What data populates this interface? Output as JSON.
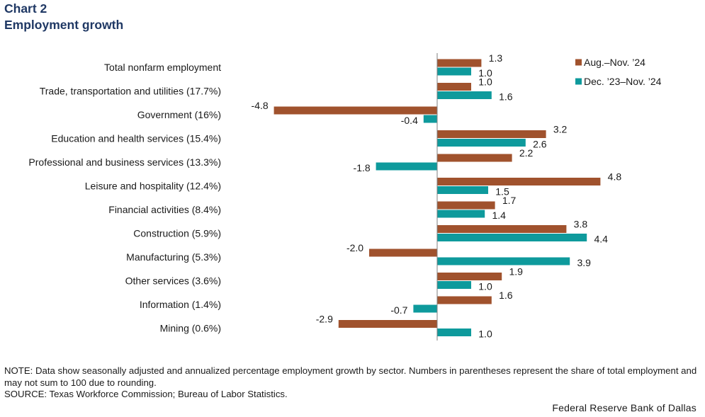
{
  "chart_number": "Chart 2",
  "title": "Employment growth",
  "note": "NOTE: Data show seasonally adjusted and annualized percentage employment growth by sector. Numbers in parentheses represent the share of total employment and may not sum to 100 due to rounding.",
  "source": "SOURCE: Texas Workforce Commission; Bureau of Labor Statistics.",
  "credit": "Federal Reserve Bank of Dallas",
  "colors": {
    "series1": "#a0522d",
    "series2": "#0e9a9c"
  },
  "chart_data": {
    "type": "bar",
    "orientation": "horizontal",
    "title": "Employment growth",
    "xlim": [
      -6.5,
      9.5
    ],
    "grid": false,
    "legend_position": "top-right",
    "categories": [
      "Total nonfarm employment",
      "Trade, transportation and utilities (17.7%)",
      "Government (16%)",
      "Education and health services (15.4%)",
      "Professional and business services (13.3%)",
      "Leisure and hospitality (12.4%)",
      "Financial activities (8.4%)",
      "Construction (5.9%)",
      "Manufacturing (5.3%)",
      "Other services (3.6%)",
      "Information (1.4%)",
      "Mining (0.6%)"
    ],
    "series": [
      {
        "name": "Aug.–Nov. ’24",
        "color": "#a0522d",
        "values": [
          1.3,
          1.0,
          -4.8,
          3.2,
          2.2,
          4.8,
          1.7,
          3.8,
          -2.0,
          1.9,
          1.6,
          -2.9
        ]
      },
      {
        "name": "Dec. ’23–Nov. ’24",
        "color": "#0e9a9c",
        "values": [
          1.0,
          1.6,
          -0.4,
          2.6,
          -1.8,
          1.5,
          1.4,
          4.4,
          3.9,
          1.0,
          -0.7,
          1.0
        ]
      }
    ]
  }
}
